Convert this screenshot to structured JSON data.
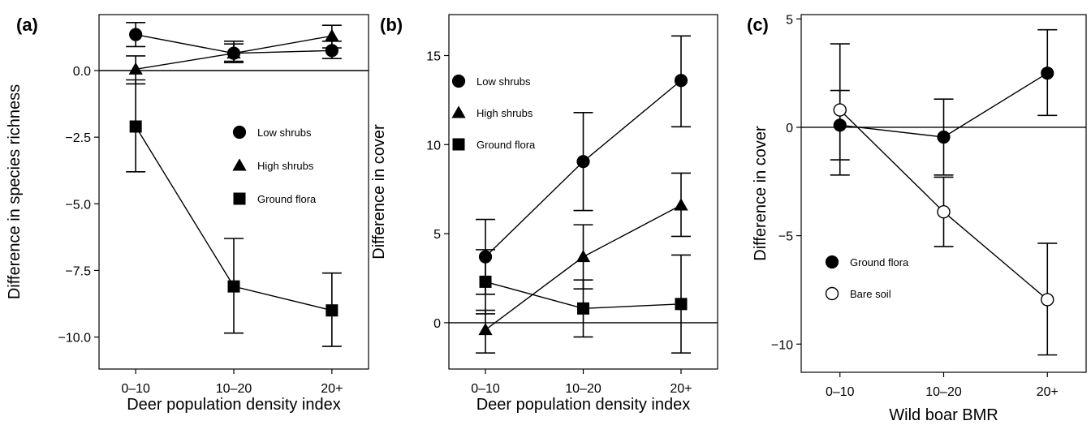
{
  "chart_data": [
    {
      "type": "line",
      "panel_label": "(a)",
      "xlabel": "Deer population density index",
      "ylabel": "Difference in species richness",
      "categories": [
        "0–10",
        "10–20",
        "20+"
      ],
      "ylim": [
        -11.2,
        2.1
      ],
      "yticks": [
        -10.0,
        -7.5,
        -5.0,
        -2.5,
        0.0
      ],
      "ytick_labels": [
        "−10.0",
        "−7.5",
        "−5.0",
        "−2.5",
        "0.0"
      ],
      "zero_line": 0,
      "grid": false,
      "legend_position": "center-right",
      "series": [
        {
          "name": "Low shrubs",
          "marker": "circle-filled",
          "values": [
            1.35,
            0.65,
            0.75
          ],
          "err_low": [
            0.9,
            0.3,
            0.45
          ],
          "err_high": [
            1.8,
            1.0,
            1.1
          ]
        },
        {
          "name": "High shrubs",
          "marker": "triangle-filled",
          "values": [
            0.05,
            0.65,
            1.3
          ],
          "err_low": [
            -0.5,
            0.35,
            0.85
          ],
          "err_high": [
            0.55,
            1.1,
            1.7
          ]
        },
        {
          "name": "Ground flora",
          "marker": "square-filled",
          "values": [
            -2.1,
            -8.1,
            -9.0
          ],
          "err_low": [
            -3.8,
            -9.85,
            -10.35
          ],
          "err_high": [
            -0.35,
            -6.3,
            -7.6
          ]
        }
      ]
    },
    {
      "type": "line",
      "panel_label": "(b)",
      "xlabel": "Deer population density index",
      "ylabel": "Difference in cover",
      "categories": [
        "0–10",
        "10–20",
        "20+"
      ],
      "ylim": [
        -2.6,
        17.3
      ],
      "yticks": [
        0,
        5,
        10,
        15
      ],
      "ytick_labels": [
        "0",
        "5",
        "10",
        "15"
      ],
      "zero_line": 0,
      "grid": false,
      "legend_position": "top-left",
      "series": [
        {
          "name": "Low shrubs",
          "marker": "circle-filled",
          "values": [
            3.7,
            9.05,
            13.6
          ],
          "err_low": [
            1.6,
            6.3,
            11.0
          ],
          "err_high": [
            5.8,
            11.8,
            16.1
          ]
        },
        {
          "name": "High shrubs",
          "marker": "triangle-filled",
          "values": [
            -0.4,
            3.7,
            6.6
          ],
          "err_low": [
            -1.7,
            1.9,
            4.85
          ],
          "err_high": [
            0.7,
            5.5,
            8.4
          ]
        },
        {
          "name": "Ground flora",
          "marker": "square-filled",
          "values": [
            2.3,
            0.8,
            1.05
          ],
          "err_low": [
            0.5,
            -0.8,
            -1.7
          ],
          "err_high": [
            4.1,
            2.4,
            3.8
          ]
        }
      ]
    },
    {
      "type": "line",
      "panel_label": "(c)",
      "xlabel": "Wild boar BMR",
      "ylabel": "Difference in cover",
      "categories": [
        "0–10",
        "10–20",
        "20+"
      ],
      "ylim": [
        -11.3,
        5.2
      ],
      "yticks": [
        -10,
        -5,
        0,
        5
      ],
      "ytick_labels": [
        "−10",
        "−5",
        "0",
        "5"
      ],
      "zero_line": 0,
      "grid": false,
      "legend_position": "bottom-left",
      "series": [
        {
          "name": "Ground flora",
          "marker": "circle-filled",
          "values": [
            0.1,
            -0.45,
            2.5
          ],
          "err_low": [
            -1.5,
            -2.2,
            0.55
          ],
          "err_high": [
            1.7,
            1.3,
            4.5
          ]
        },
        {
          "name": "Bare soil",
          "marker": "circle-open",
          "values": [
            0.8,
            -3.9,
            -7.95
          ],
          "err_low": [
            -2.2,
            -5.5,
            -10.5
          ],
          "err_high": [
            3.85,
            -2.3,
            -5.35
          ]
        }
      ]
    }
  ]
}
